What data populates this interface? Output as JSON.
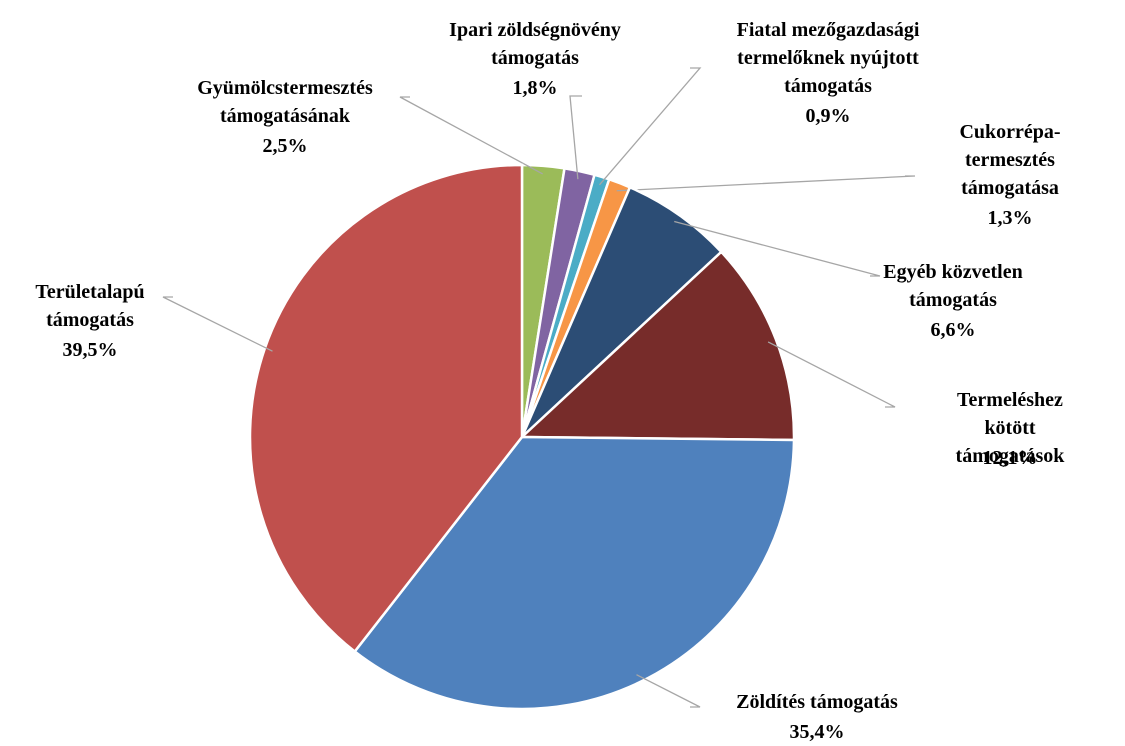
{
  "chart_data": {
    "type": "pie",
    "categories": [
      "Gyümölcstermesztés\ntámogatásának",
      "Ipari zöldségnövény\ntámogatás",
      "Fiatal mezőgazdasági\ntermelőknek nyújtott\ntámogatás",
      "Cukorrépa-\ntermesztés\ntámogatása",
      "Egyéb közvetlen\ntámogatás",
      "Termeléshez kötött\ntámogatások",
      "Zöldítés támogatás",
      "Területalapú\ntámogatás"
    ],
    "values": [
      2.5,
      1.8,
      0.9,
      1.3,
      6.6,
      12.1,
      35.4,
      39.5
    ],
    "value_labels": [
      "2,5%",
      "1,8%",
      "0,9%",
      "1,3%",
      "6,6%",
      "12,1%",
      "35,4%",
      "39,5%"
    ],
    "colors": [
      "#9bbb59",
      "#8064a2",
      "#4bacc6",
      "#f79646",
      "#2c4d75",
      "#772c2a",
      "#4f81bd",
      "#c0504d"
    ]
  }
}
